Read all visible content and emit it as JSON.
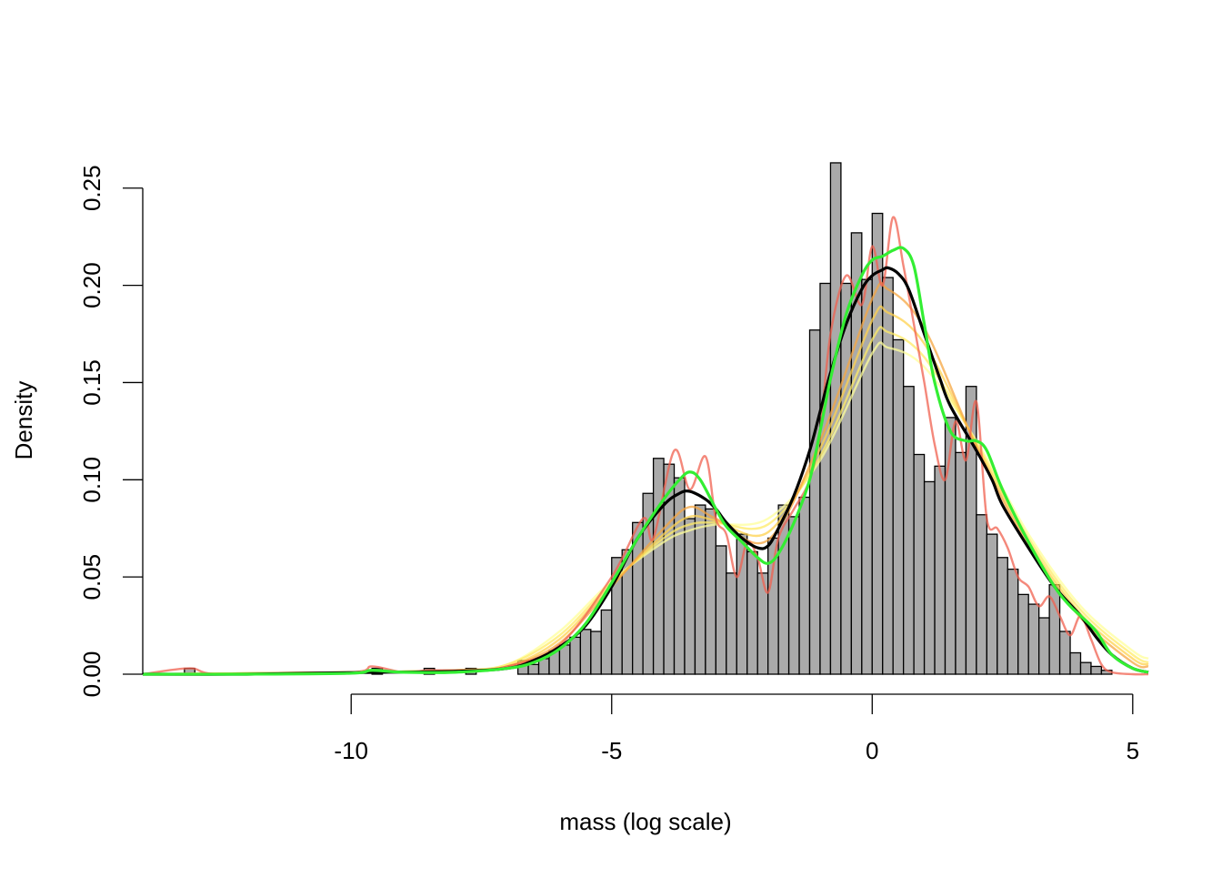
{
  "chart_data": {
    "type": "histogram",
    "title": "",
    "xlabel": "mass (log scale)",
    "ylabel": "Density",
    "xlim": [
      -14,
      5.3
    ],
    "ylim": [
      0,
      0.27
    ],
    "x_ticks": [
      -10,
      -5,
      0,
      5
    ],
    "x_tick_labels": [
      "-10",
      "-5",
      "0",
      "5"
    ],
    "y_ticks": [
      0.0,
      0.05,
      0.1,
      0.15,
      0.2,
      0.25
    ],
    "y_tick_labels": [
      "0.00",
      "0.05",
      "0.10",
      "0.15",
      "0.20",
      "0.25"
    ],
    "grid": false,
    "legend": "none",
    "histogram": {
      "bin_width": 0.2,
      "bin_starts": [
        -13.2,
        -9.6,
        -8.6,
        -7.8,
        -6.8,
        -6.6,
        -6.4,
        -6.2,
        -6.0,
        -5.8,
        -5.6,
        -5.4,
        -5.2,
        -5.0,
        -4.8,
        -4.6,
        -4.4,
        -4.2,
        -4.0,
        -3.8,
        -3.6,
        -3.4,
        -3.2,
        -3.0,
        -2.8,
        -2.6,
        -2.4,
        -2.2,
        -2.0,
        -1.8,
        -1.6,
        -1.4,
        -1.2,
        -1.0,
        -0.8,
        -0.6,
        -0.4,
        -0.2,
        0.0,
        0.2,
        0.4,
        0.6,
        0.8,
        1.0,
        1.2,
        1.4,
        1.6,
        1.8,
        2.0,
        2.2,
        2.4,
        2.6,
        2.8,
        3.0,
        3.2,
        3.4,
        3.6,
        3.8,
        4.0,
        4.2,
        4.4
      ],
      "densities": [
        0.003,
        0.003,
        0.003,
        0.003,
        0.007,
        0.005,
        0.008,
        0.012,
        0.015,
        0.019,
        0.023,
        0.022,
        0.033,
        0.06,
        0.064,
        0.078,
        0.093,
        0.111,
        0.108,
        0.101,
        0.08,
        0.087,
        0.085,
        0.066,
        0.052,
        0.072,
        0.063,
        0.052,
        0.07,
        0.087,
        0.081,
        0.091,
        0.177,
        0.201,
        0.263,
        0.201,
        0.227,
        0.203,
        0.237,
        0.204,
        0.172,
        0.148,
        0.113,
        0.099,
        0.107,
        0.132,
        0.114,
        0.148,
        0.082,
        0.072,
        0.06,
        0.054,
        0.041,
        0.036,
        0.029,
        0.046,
        0.022,
        0.011,
        0.006,
        0.004,
        0.002
      ],
      "fill": "#aaaaaa",
      "border": "#000000"
    },
    "series": [
      {
        "color": "#ffff99",
        "x": [
          -14,
          -10,
          -8,
          -7,
          -6,
          -5,
          -4,
          -3.5,
          -3,
          -2,
          -1,
          0,
          0.3,
          1,
          2,
          3,
          4,
          5,
          5.3
        ],
        "y": [
          0,
          0.001,
          0.002,
          0.005,
          0.022,
          0.048,
          0.068,
          0.074,
          0.077,
          0.08,
          0.11,
          0.165,
          0.168,
          0.158,
          0.12,
          0.072,
          0.035,
          0.012,
          0.008
        ]
      },
      {
        "color": "#ffeb66",
        "x": [
          -14,
          -10,
          -8,
          -7,
          -6,
          -5,
          -4,
          -3.5,
          -3,
          -2,
          -1,
          0,
          0.3,
          1,
          2,
          3,
          4,
          5,
          5.3
        ],
        "y": [
          0,
          0.001,
          0.002,
          0.005,
          0.02,
          0.047,
          0.07,
          0.077,
          0.078,
          0.077,
          0.112,
          0.172,
          0.176,
          0.163,
          0.119,
          0.07,
          0.033,
          0.01,
          0.006
        ]
      },
      {
        "color": "#ffd24d",
        "x": [
          -14,
          -10,
          -8,
          -7,
          -6,
          -5,
          -4,
          -3.5,
          -3,
          -2,
          -1,
          0,
          0.3,
          1,
          2,
          3,
          4,
          5,
          5.3
        ],
        "y": [
          0,
          0.001,
          0.002,
          0.004,
          0.018,
          0.046,
          0.072,
          0.081,
          0.079,
          0.073,
          0.116,
          0.182,
          0.186,
          0.17,
          0.118,
          0.068,
          0.031,
          0.008,
          0.005
        ]
      },
      {
        "color": "#f5a640",
        "x": [
          -14,
          -10,
          -8,
          -7,
          -6,
          -5,
          -4,
          -3.5,
          -3,
          -2,
          -1,
          0,
          0.3,
          1,
          2,
          3,
          4,
          5,
          5.3
        ],
        "y": [
          0,
          0.001,
          0.002,
          0.004,
          0.016,
          0.045,
          0.075,
          0.086,
          0.08,
          0.069,
          0.12,
          0.193,
          0.198,
          0.178,
          0.117,
          0.066,
          0.029,
          0.006,
          0.004
        ]
      },
      {
        "color": "#f0604f",
        "x": [
          -14,
          -13.1,
          -12.5,
          -10,
          -9.6,
          -9,
          -8.5,
          -7.8,
          -7,
          -6,
          -5,
          -4.4,
          -4.2,
          -3.8,
          -3.5,
          -3.2,
          -3,
          -2.8,
          -2.6,
          -2.4,
          -2.2,
          -2,
          -1.8,
          -1.5,
          -1.2,
          -1,
          -0.8,
          -0.5,
          -0.2,
          0,
          0.2,
          0.4,
          0.6,
          0.8,
          1,
          1.2,
          1.4,
          1.6,
          1.8,
          2,
          2.2,
          2.4,
          2.6,
          2.8,
          3,
          3.2,
          3.4,
          3.6,
          3.8,
          4,
          4.2,
          4.4,
          4.6,
          5,
          5.3
        ],
        "y": [
          0,
          0.003,
          0,
          0.001,
          0.004,
          0.001,
          0.002,
          0.002,
          0.004,
          0.015,
          0.05,
          0.08,
          0.07,
          0.115,
          0.095,
          0.112,
          0.08,
          0.072,
          0.05,
          0.068,
          0.06,
          0.042,
          0.07,
          0.085,
          0.1,
          0.125,
          0.175,
          0.205,
          0.19,
          0.22,
          0.2,
          0.235,
          0.21,
          0.18,
          0.15,
          0.118,
          0.1,
          0.13,
          0.11,
          0.14,
          0.08,
          0.075,
          0.065,
          0.05,
          0.045,
          0.035,
          0.04,
          0.03,
          0.02,
          0.03,
          0.018,
          0.005,
          0.001,
          0,
          0
        ]
      },
      {
        "color": "#000000",
        "x": [
          -14,
          -12,
          -10,
          -8,
          -7,
          -6.5,
          -6,
          -5.5,
          -5,
          -4.5,
          -4,
          -3.7,
          -3.5,
          -3.2,
          -3,
          -2.8,
          -2.5,
          -2.2,
          -2,
          -1.8,
          -1.5,
          -1.2,
          -1,
          -0.8,
          -0.5,
          -0.2,
          0,
          0.2,
          0.3,
          0.5,
          0.7,
          1,
          1.3,
          1.5,
          2,
          2.3,
          2.5,
          3,
          3.5,
          4,
          4.3,
          4.6,
          5,
          5.3
        ],
        "y": [
          0,
          0,
          0.0008,
          0.0015,
          0.003,
          0.007,
          0.014,
          0.025,
          0.045,
          0.07,
          0.087,
          0.093,
          0.094,
          0.09,
          0.085,
          0.078,
          0.07,
          0.065,
          0.066,
          0.075,
          0.092,
          0.115,
          0.135,
          0.155,
          0.18,
          0.198,
          0.205,
          0.208,
          0.209,
          0.206,
          0.198,
          0.175,
          0.152,
          0.138,
          0.115,
          0.1,
          0.087,
          0.065,
          0.045,
          0.03,
          0.019,
          0.01,
          0.003,
          0.001
        ]
      },
      {
        "color": "#33ee33",
        "x": [
          -14,
          -12,
          -10,
          -9.6,
          -9,
          -8,
          -7,
          -6.5,
          -6,
          -5.5,
          -5,
          -4.5,
          -4,
          -3.7,
          -3.5,
          -3.3,
          -3,
          -2.8,
          -2.5,
          -2.2,
          -2,
          -1.8,
          -1.5,
          -1.2,
          -1,
          -0.8,
          -0.5,
          -0.2,
          0,
          0.2,
          0.4,
          0.6,
          0.8,
          1,
          1.2,
          1.5,
          1.8,
          2,
          2.2,
          2.5,
          3,
          3.5,
          3.8,
          4,
          4.3,
          4.6,
          5,
          5.3
        ],
        "y": [
          0,
          0,
          0.0005,
          0.002,
          0.001,
          0.001,
          0.003,
          0.006,
          0.013,
          0.026,
          0.047,
          0.07,
          0.09,
          0.1,
          0.104,
          0.1,
          0.085,
          0.076,
          0.068,
          0.06,
          0.057,
          0.062,
          0.078,
          0.1,
          0.125,
          0.152,
          0.185,
          0.205,
          0.213,
          0.215,
          0.218,
          0.219,
          0.21,
          0.18,
          0.15,
          0.125,
          0.12,
          0.12,
          0.115,
          0.095,
          0.068,
          0.045,
          0.035,
          0.03,
          0.022,
          0.01,
          0.003,
          0.001
        ]
      }
    ]
  }
}
